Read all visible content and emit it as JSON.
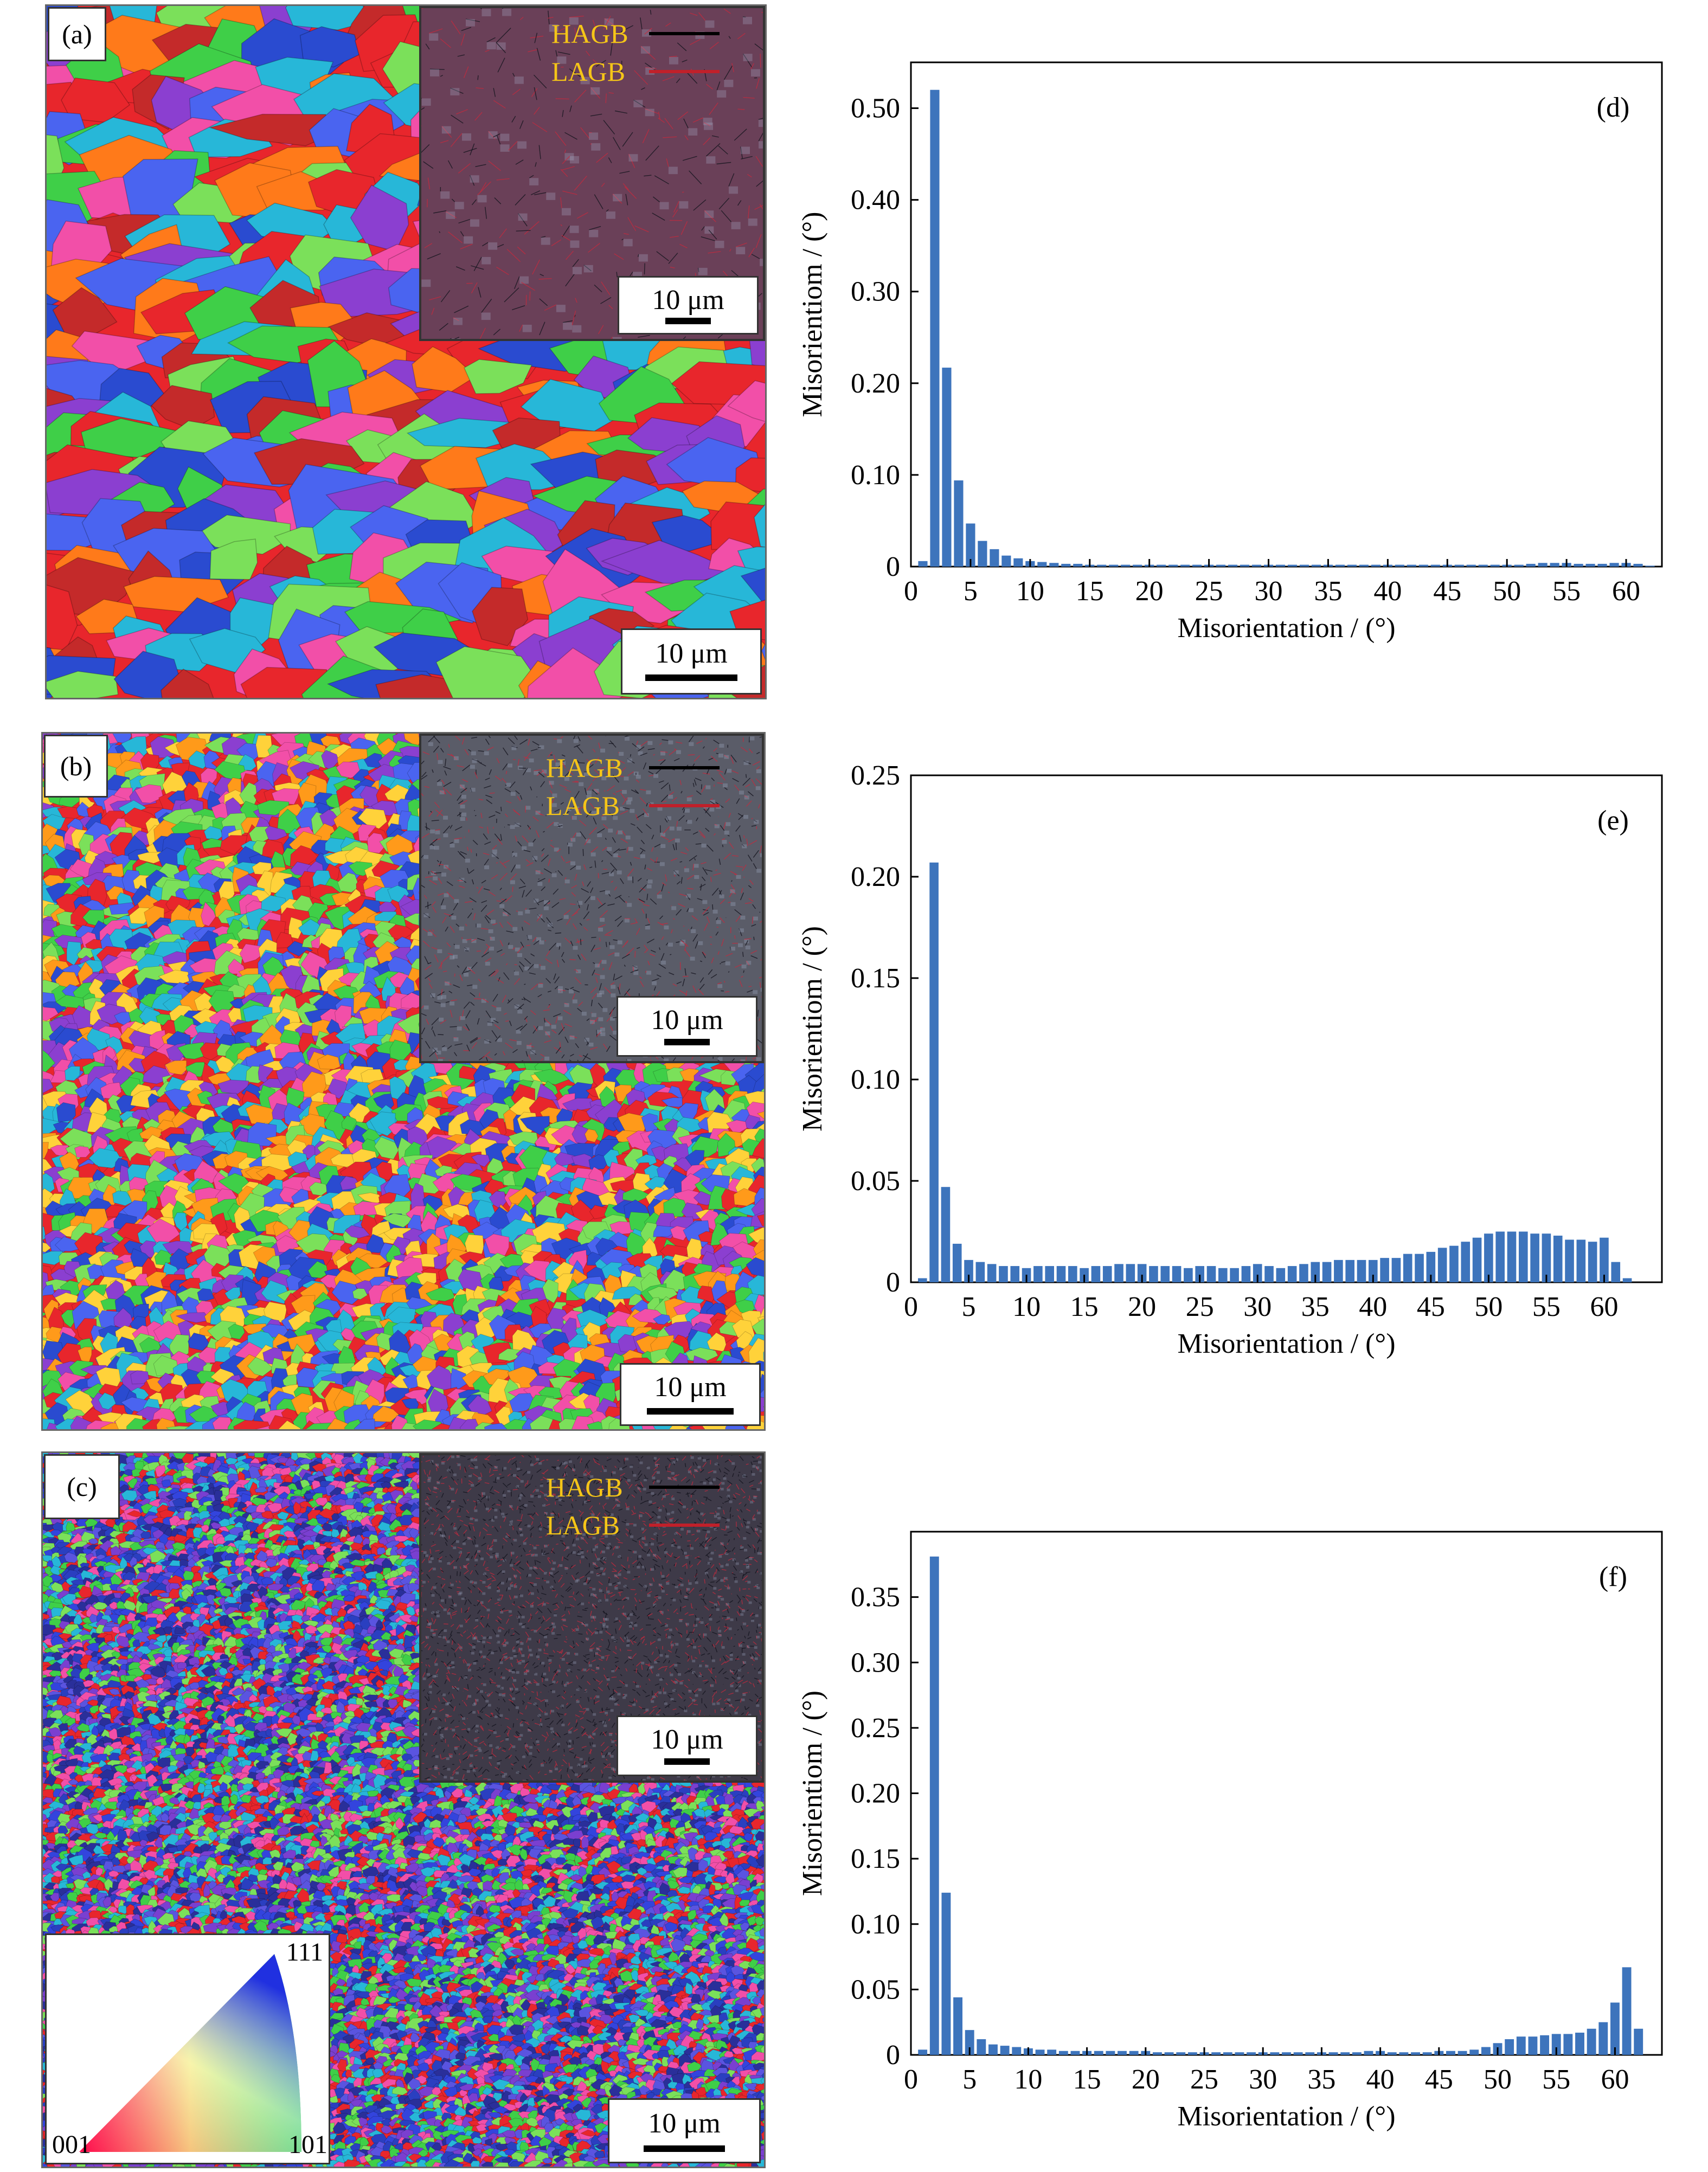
{
  "panels": [
    {
      "label": "(a)",
      "legend": {
        "hagb": "HAGB",
        "lagb": "LAGB",
        "hagb_color": "#000000",
        "lagb_color": "#c0202a"
      },
      "inset_scale": "10 μm",
      "scale": "10 μm",
      "palette": [
        "#e8262c",
        "#2a4bd0",
        "#3fcf48",
        "#f24fa8",
        "#8b3fd0",
        "#27b7d8",
        "#ff7a1a",
        "#7be05a",
        "#4a64f0",
        "#c42a2a"
      ],
      "inset_bg": "#6a4058"
    },
    {
      "label": "(b)",
      "legend": {
        "hagb": "HAGB",
        "lagb": "LAGB",
        "hagb_color": "#000000",
        "lagb_color": "#c0202a"
      },
      "inset_scale": "10 μm",
      "scale": "10 μm",
      "palette": [
        "#e8262c",
        "#2a4bd0",
        "#3fcf48",
        "#f24fa8",
        "#8b3fd0",
        "#27b7d8",
        "#ff9a1a",
        "#7be05a",
        "#4a64f0",
        "#ffd23a"
      ],
      "inset_bg": "#5a5c68"
    },
    {
      "label": "(c)",
      "legend": {
        "hagb": "HAGB",
        "lagb": "LAGB",
        "hagb_color": "#000000",
        "lagb_color": "#c0202a"
      },
      "inset_scale": "10 μm",
      "scale": "10 μm",
      "palette": [
        "#e8262c",
        "#2a3fc0",
        "#3fcf48",
        "#f24fa8",
        "#7a3fd0",
        "#27b7d8",
        "#3344dd",
        "#7be05a",
        "#5a54e0",
        "#2a2f9a"
      ],
      "inset_bg": "#3e3a48"
    }
  ],
  "ipf_triangle": {
    "corner_001": "001",
    "corner_101": "101",
    "corner_111": "111"
  },
  "chart_data": [
    {
      "type": "bar",
      "panel_tag": "(d)",
      "xlabel": "Misorientation / (°)",
      "ylabel": "Misorientiom / (°)",
      "xlim": [
        0,
        63
      ],
      "ylim": [
        0,
        0.55
      ],
      "xticks": [
        "0",
        "5",
        "10",
        "15",
        "20",
        "25",
        "30",
        "35",
        "40",
        "45",
        "50",
        "55",
        "60"
      ],
      "yticks": [
        "0",
        "0.10",
        "0.20",
        "0.30",
        "0.40",
        "0.50"
      ],
      "ytick_values": [
        0,
        0.1,
        0.2,
        0.3,
        0.4,
        0.5
      ],
      "bar_color": "#3d74bc",
      "x": [
        1,
        2,
        3,
        4,
        5,
        6,
        7,
        8,
        9,
        10,
        11,
        12,
        13,
        14,
        15,
        16,
        17,
        18,
        19,
        20,
        21,
        22,
        23,
        24,
        25,
        26,
        27,
        28,
        29,
        30,
        31,
        32,
        33,
        34,
        35,
        36,
        37,
        38,
        39,
        40,
        41,
        42,
        43,
        44,
        45,
        46,
        47,
        48,
        49,
        50,
        51,
        52,
        53,
        54,
        55,
        56,
        57,
        58,
        59,
        60,
        61,
        62
      ],
      "values": [
        0.006,
        0.52,
        0.217,
        0.094,
        0.047,
        0.028,
        0.019,
        0.012,
        0.009,
        0.006,
        0.005,
        0.004,
        0.003,
        0.003,
        0.002,
        0.002,
        0.002,
        0.002,
        0.002,
        0.002,
        0.002,
        0.002,
        0.002,
        0.002,
        0.002,
        0.002,
        0.002,
        0.002,
        0.002,
        0.002,
        0.002,
        0.002,
        0.002,
        0.002,
        0.002,
        0.002,
        0.002,
        0.002,
        0.002,
        0.002,
        0.002,
        0.002,
        0.002,
        0.002,
        0.002,
        0.002,
        0.002,
        0.002,
        0.002,
        0.002,
        0.002,
        0.003,
        0.004,
        0.004,
        0.004,
        0.003,
        0.003,
        0.003,
        0.004,
        0.004,
        0.003,
        0.001
      ]
    },
    {
      "type": "bar",
      "panel_tag": "(e)",
      "xlabel": "Misorientation / (°)",
      "ylabel": "Misorientiom / (°)",
      "xlim": [
        0,
        65
      ],
      "ylim": [
        0,
        0.25
      ],
      "xticks": [
        "0",
        "5",
        "10",
        "15",
        "20",
        "25",
        "30",
        "35",
        "40",
        "45",
        "50",
        "55",
        "60"
      ],
      "yticks": [
        "0",
        "0.05",
        "0.10",
        "0.15",
        "0.20",
        "0.25"
      ],
      "ytick_values": [
        0,
        0.05,
        0.1,
        0.15,
        0.2,
        0.25
      ],
      "bar_color": "#3d74bc",
      "x": [
        1,
        2,
        3,
        4,
        5,
        6,
        7,
        8,
        9,
        10,
        11,
        12,
        13,
        14,
        15,
        16,
        17,
        18,
        19,
        20,
        21,
        22,
        23,
        24,
        25,
        26,
        27,
        28,
        29,
        30,
        31,
        32,
        33,
        34,
        35,
        36,
        37,
        38,
        39,
        40,
        41,
        42,
        43,
        44,
        45,
        46,
        47,
        48,
        49,
        50,
        51,
        52,
        53,
        54,
        55,
        56,
        57,
        58,
        59,
        60,
        61,
        62
      ],
      "values": [
        0.002,
        0.207,
        0.047,
        0.019,
        0.011,
        0.01,
        0.009,
        0.008,
        0.008,
        0.007,
        0.008,
        0.008,
        0.008,
        0.008,
        0.007,
        0.008,
        0.008,
        0.009,
        0.009,
        0.009,
        0.008,
        0.008,
        0.008,
        0.007,
        0.008,
        0.008,
        0.007,
        0.007,
        0.008,
        0.009,
        0.008,
        0.007,
        0.008,
        0.009,
        0.01,
        0.01,
        0.011,
        0.011,
        0.011,
        0.011,
        0.012,
        0.012,
        0.014,
        0.014,
        0.015,
        0.017,
        0.018,
        0.02,
        0.022,
        0.024,
        0.025,
        0.025,
        0.025,
        0.024,
        0.024,
        0.023,
        0.021,
        0.021,
        0.02,
        0.022,
        0.01,
        0.002
      ]
    },
    {
      "type": "bar",
      "panel_tag": "(f)",
      "xlabel": "Misorientation / (°)",
      "ylabel": "Misorientiom / (°)",
      "xlim": [
        0,
        64
      ],
      "ylim": [
        0,
        0.4
      ],
      "xticks": [
        "0",
        "5",
        "10",
        "15",
        "20",
        "25",
        "30",
        "35",
        "40",
        "45",
        "50",
        "55",
        "60"
      ],
      "yticks": [
        "0",
        "0.05",
        "0.10",
        "0.15",
        "0.20",
        "0.25",
        "0.30",
        "0.35"
      ],
      "ytick_values": [
        0,
        0.05,
        0.1,
        0.15,
        0.2,
        0.25,
        0.3,
        0.35
      ],
      "bar_color": "#3d74bc",
      "x": [
        1,
        2,
        3,
        4,
        5,
        6,
        7,
        8,
        9,
        10,
        11,
        12,
        13,
        14,
        15,
        16,
        17,
        18,
        19,
        20,
        21,
        22,
        23,
        24,
        25,
        26,
        27,
        28,
        29,
        30,
        31,
        32,
        33,
        34,
        35,
        36,
        37,
        38,
        39,
        40,
        41,
        42,
        43,
        44,
        45,
        46,
        47,
        48,
        49,
        50,
        51,
        52,
        53,
        54,
        55,
        56,
        57,
        58,
        59,
        60,
        61,
        62
      ],
      "values": [
        0.004,
        0.381,
        0.124,
        0.044,
        0.019,
        0.012,
        0.008,
        0.007,
        0.006,
        0.005,
        0.004,
        0.004,
        0.003,
        0.003,
        0.003,
        0.003,
        0.003,
        0.003,
        0.003,
        0.003,
        0.002,
        0.002,
        0.002,
        0.002,
        0.002,
        0.002,
        0.002,
        0.002,
        0.002,
        0.002,
        0.002,
        0.002,
        0.002,
        0.002,
        0.002,
        0.002,
        0.002,
        0.002,
        0.003,
        0.003,
        0.002,
        0.002,
        0.002,
        0.002,
        0.003,
        0.003,
        0.003,
        0.004,
        0.006,
        0.009,
        0.012,
        0.014,
        0.014,
        0.015,
        0.016,
        0.016,
        0.017,
        0.02,
        0.025,
        0.04,
        0.067,
        0.02
      ]
    }
  ]
}
